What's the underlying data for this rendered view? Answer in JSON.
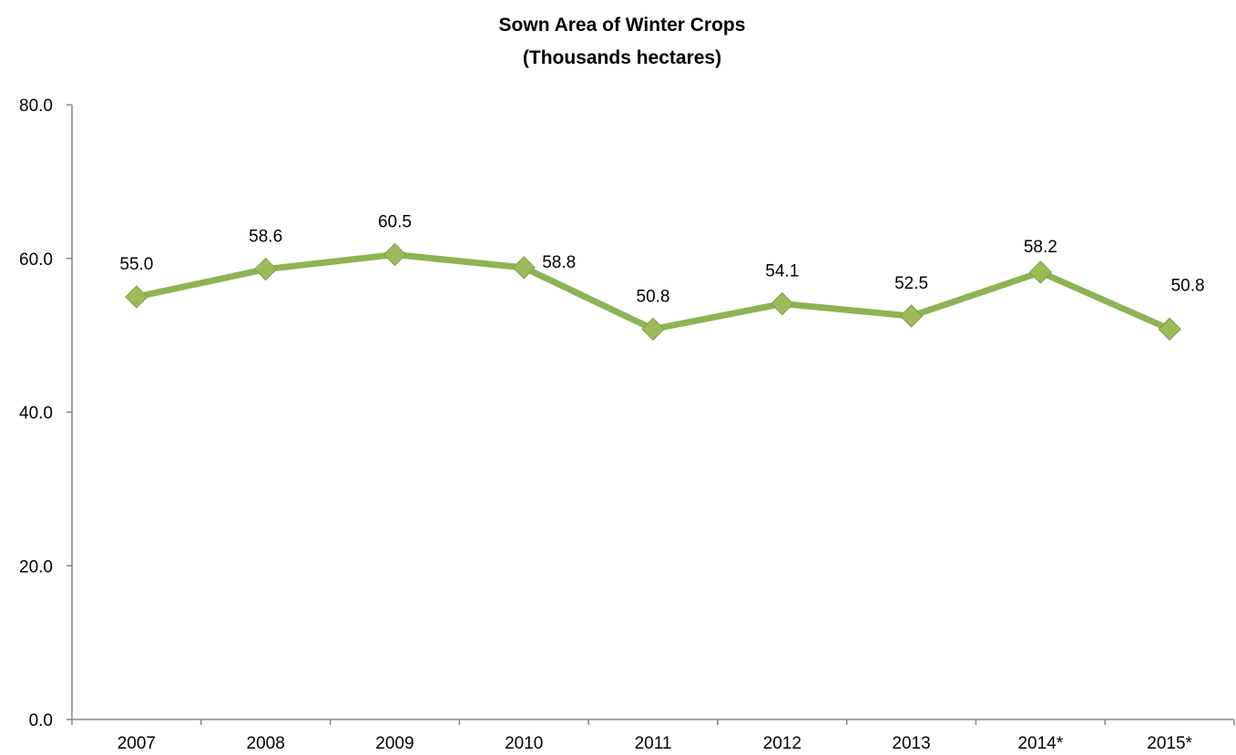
{
  "chart_data": {
    "type": "line",
    "title_lines": [
      "Sown Area of Winter Crops",
      "(Thousands hectares)"
    ],
    "xlabel": "",
    "ylabel": "",
    "categories": [
      "2007",
      "2008",
      "2009",
      "2010",
      "2011",
      "2012",
      "2013",
      "2014*",
      "2015*"
    ],
    "series": [
      {
        "values": [
          55.0,
          58.6,
          60.5,
          58.8,
          50.8,
          54.1,
          52.5,
          58.2,
          50.8
        ],
        "labels": [
          "55.0",
          "58.6",
          "60.5",
          "58.8",
          "50.8",
          "54.1",
          "52.5",
          "58.2",
          "50.8"
        ],
        "color": "#8DB354",
        "marker": "diamond",
        "marker_color": "#9BBB59"
      }
    ],
    "ylim": [
      0,
      80
    ],
    "yticks": [
      0,
      20,
      40,
      60,
      80
    ],
    "ytick_labels": [
      "0.0",
      "20.0",
      "40.0",
      "60.0",
      "80.0"
    ],
    "grid": false,
    "legend": "none",
    "axis_color": "#868686"
  }
}
